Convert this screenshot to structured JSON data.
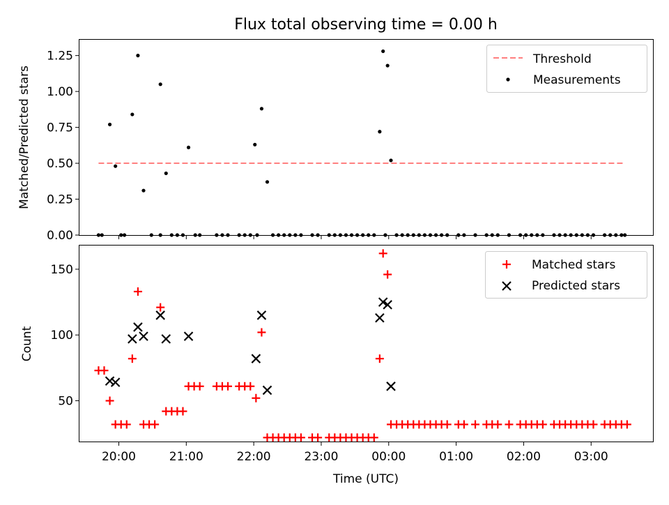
{
  "chart_data": [
    {
      "type": "scatter",
      "title": "Flux total observing time = 0.00 h",
      "xlabel": "",
      "ylabel": "Matched/Predicted stars",
      "xlim": [
        "19:25",
        "03:55"
      ],
      "ylim": [
        0,
        1.36
      ],
      "y_ticks": [
        0.0,
        0.25,
        0.5,
        0.75,
        1.0,
        1.25
      ],
      "y_tick_labels": [
        "0.00",
        "0.25",
        "0.50",
        "0.75",
        "1.00",
        "1.25"
      ],
      "grid": false,
      "legend_position": "top-right",
      "threshold": {
        "name": "Threshold",
        "value": 0.5,
        "x_start": "19:42",
        "x_end": "03:30",
        "color": "#ff7f7f",
        "style": "dashed"
      },
      "series": [
        {
          "name": "Measurements",
          "color": "#000000",
          "marker": "dot",
          "points": [
            [
              "19:42",
              0
            ],
            [
              "19:45",
              0
            ],
            [
              "19:52",
              0.77
            ],
            [
              "19:57",
              0.48
            ],
            [
              "20:02",
              0
            ],
            [
              "20:05",
              0
            ],
            [
              "20:12",
              0.84
            ],
            [
              "20:17",
              1.25
            ],
            [
              "20:22",
              0.31
            ],
            [
              "20:29",
              0
            ],
            [
              "20:37",
              0
            ],
            [
              "20:37",
              1.05
            ],
            [
              "20:42",
              0.43
            ],
            [
              "20:47",
              0
            ],
            [
              "20:52",
              0
            ],
            [
              "20:57",
              0
            ],
            [
              "21:02",
              0.61
            ],
            [
              "21:08",
              0
            ],
            [
              "21:12",
              0
            ],
            [
              "21:27",
              0
            ],
            [
              "21:32",
              0
            ],
            [
              "21:37",
              0
            ],
            [
              "21:47",
              0
            ],
            [
              "21:52",
              0
            ],
            [
              "21:57",
              0
            ],
            [
              "22:01",
              0.63
            ],
            [
              "22:03",
              0
            ],
            [
              "22:07",
              0.88
            ],
            [
              "22:12",
              0.37
            ],
            [
              "22:17",
              0
            ],
            [
              "22:22",
              0
            ],
            [
              "22:27",
              0
            ],
            [
              "22:32",
              0
            ],
            [
              "22:37",
              0
            ],
            [
              "22:42",
              0
            ],
            [
              "22:52",
              0
            ],
            [
              "22:57",
              0
            ],
            [
              "23:07",
              0
            ],
            [
              "23:12",
              0
            ],
            [
              "23:17",
              0
            ],
            [
              "23:22",
              0
            ],
            [
              "23:27",
              0
            ],
            [
              "23:32",
              0
            ],
            [
              "23:37",
              0
            ],
            [
              "23:42",
              0
            ],
            [
              "23:47",
              0
            ],
            [
              "23:52",
              0.72
            ],
            [
              "23:55",
              1.28
            ],
            [
              "23:57",
              0
            ],
            [
              "23:59",
              1.18
            ],
            [
              "00:02",
              0.52
            ],
            [
              "00:07",
              0
            ],
            [
              "00:12",
              0
            ],
            [
              "00:17",
              0
            ],
            [
              "00:22",
              0
            ],
            [
              "00:27",
              0
            ],
            [
              "00:32",
              0
            ],
            [
              "00:37",
              0
            ],
            [
              "00:42",
              0
            ],
            [
              "00:47",
              0
            ],
            [
              "00:52",
              0
            ],
            [
              "01:02",
              0
            ],
            [
              "01:07",
              0
            ],
            [
              "01:17",
              0
            ],
            [
              "01:27",
              0
            ],
            [
              "01:32",
              0
            ],
            [
              "01:37",
              0
            ],
            [
              "01:47",
              0
            ],
            [
              "01:57",
              0
            ],
            [
              "02:02",
              0
            ],
            [
              "02:07",
              0
            ],
            [
              "02:12",
              0
            ],
            [
              "02:17",
              0
            ],
            [
              "02:27",
              0
            ],
            [
              "02:32",
              0
            ],
            [
              "02:37",
              0
            ],
            [
              "02:42",
              0
            ],
            [
              "02:47",
              0
            ],
            [
              "02:52",
              0
            ],
            [
              "02:57",
              0
            ],
            [
              "03:02",
              0
            ],
            [
              "03:12",
              0
            ],
            [
              "03:17",
              0
            ],
            [
              "03:22",
              0
            ],
            [
              "03:27",
              0
            ],
            [
              "03:30",
              0
            ]
          ]
        }
      ]
    },
    {
      "type": "scatter",
      "title": "",
      "xlabel": "Time (UTC)",
      "ylabel": "Count",
      "xlim": [
        "19:25",
        "03:55"
      ],
      "ylim": [
        19,
        168
      ],
      "y_ticks": [
        50,
        100,
        150
      ],
      "y_tick_labels": [
        "50",
        "100",
        "150"
      ],
      "x_ticks": [
        "20:00",
        "21:00",
        "22:00",
        "23:00",
        "00:00",
        "01:00",
        "02:00",
        "03:00"
      ],
      "x_tick_labels": [
        "20:00",
        "21:00",
        "22:00",
        "23:00",
        "00:00",
        "01:00",
        "02:00",
        "03:00"
      ],
      "grid": false,
      "legend_position": "top-right",
      "series": [
        {
          "name": "Matched stars",
          "color": "#ff0000",
          "marker": "plus",
          "points": [
            [
              "19:42",
              73
            ],
            [
              "19:47",
              73
            ],
            [
              "19:52",
              50
            ],
            [
              "19:57",
              32
            ],
            [
              "20:02",
              32
            ],
            [
              "20:07",
              32
            ],
            [
              "20:12",
              82
            ],
            [
              "20:17",
              133
            ],
            [
              "20:22",
              32
            ],
            [
              "20:27",
              32
            ],
            [
              "20:32",
              32
            ],
            [
              "20:37",
              121
            ],
            [
              "20:42",
              42
            ],
            [
              "20:47",
              42
            ],
            [
              "20:52",
              42
            ],
            [
              "20:57",
              42
            ],
            [
              "21:02",
              61
            ],
            [
              "21:07",
              61
            ],
            [
              "21:12",
              61
            ],
            [
              "21:27",
              61
            ],
            [
              "21:32",
              61
            ],
            [
              "21:37",
              61
            ],
            [
              "21:47",
              61
            ],
            [
              "21:52",
              61
            ],
            [
              "21:57",
              61
            ],
            [
              "22:02",
              52
            ],
            [
              "22:07",
              102
            ],
            [
              "22:12",
              22
            ],
            [
              "22:17",
              22
            ],
            [
              "22:22",
              22
            ],
            [
              "22:27",
              22
            ],
            [
              "22:32",
              22
            ],
            [
              "22:37",
              22
            ],
            [
              "22:42",
              22
            ],
            [
              "22:52",
              22
            ],
            [
              "22:57",
              22
            ],
            [
              "23:07",
              22
            ],
            [
              "23:12",
              22
            ],
            [
              "23:17",
              22
            ],
            [
              "23:22",
              22
            ],
            [
              "23:27",
              22
            ],
            [
              "23:32",
              22
            ],
            [
              "23:37",
              22
            ],
            [
              "23:42",
              22
            ],
            [
              "23:47",
              22
            ],
            [
              "23:52",
              82
            ],
            [
              "23:55",
              162
            ],
            [
              "23:59",
              146
            ],
            [
              "00:02",
              32
            ],
            [
              "00:07",
              32
            ],
            [
              "00:12",
              32
            ],
            [
              "00:17",
              32
            ],
            [
              "00:22",
              32
            ],
            [
              "00:27",
              32
            ],
            [
              "00:32",
              32
            ],
            [
              "00:37",
              32
            ],
            [
              "00:42",
              32
            ],
            [
              "00:47",
              32
            ],
            [
              "00:52",
              32
            ],
            [
              "01:02",
              32
            ],
            [
              "01:07",
              32
            ],
            [
              "01:17",
              32
            ],
            [
              "01:27",
              32
            ],
            [
              "01:32",
              32
            ],
            [
              "01:37",
              32
            ],
            [
              "01:47",
              32
            ],
            [
              "01:57",
              32
            ],
            [
              "02:02",
              32
            ],
            [
              "02:07",
              32
            ],
            [
              "02:12",
              32
            ],
            [
              "02:17",
              32
            ],
            [
              "02:27",
              32
            ],
            [
              "02:32",
              32
            ],
            [
              "02:37",
              32
            ],
            [
              "02:42",
              32
            ],
            [
              "02:47",
              32
            ],
            [
              "02:52",
              32
            ],
            [
              "02:57",
              32
            ],
            [
              "03:02",
              32
            ],
            [
              "03:12",
              32
            ],
            [
              "03:17",
              32
            ],
            [
              "03:22",
              32
            ],
            [
              "03:27",
              32
            ],
            [
              "03:32",
              32
            ]
          ]
        },
        {
          "name": "Predicted stars",
          "color": "#000000",
          "marker": "x",
          "points": [
            [
              "19:52",
              65
            ],
            [
              "19:57",
              64
            ],
            [
              "20:12",
              97
            ],
            [
              "20:17",
              106
            ],
            [
              "20:22",
              99
            ],
            [
              "20:37",
              115
            ],
            [
              "20:42",
              97
            ],
            [
              "21:02",
              99
            ],
            [
              "22:02",
              82
            ],
            [
              "22:07",
              115
            ],
            [
              "22:12",
              58
            ],
            [
              "23:52",
              113
            ],
            [
              "23:55",
              125
            ],
            [
              "23:59",
              123
            ],
            [
              "00:02",
              61
            ]
          ]
        }
      ]
    }
  ]
}
